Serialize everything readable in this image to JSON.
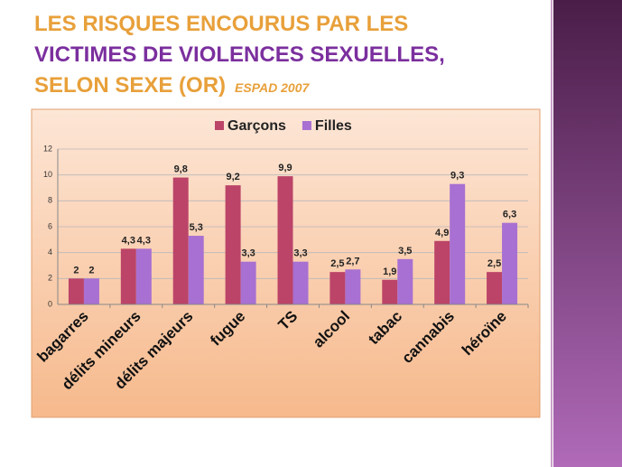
{
  "title_lines": [
    "LES RISQUES ENCOURUS PAR LES",
    "VICTIMES DE VIOLENCES SEXUELLES,",
    "SELON SEXE (OR)"
  ],
  "subtitle": "ESPAD 2007",
  "chart_data": {
    "type": "bar",
    "categories": [
      "bagarres",
      "délits mineurs",
      "délits majeurs",
      "fugue",
      "TS",
      "alcool",
      "tabac",
      "cannabis",
      "héroïne"
    ],
    "series": [
      {
        "name": "Garçons",
        "color": "#bb4468",
        "values": [
          2,
          4.3,
          9.8,
          9.2,
          9.9,
          2.5,
          1.9,
          4.9,
          2.5
        ],
        "value_labels": [
          "2",
          "4,3",
          "9,8",
          "9,2",
          "9,9",
          "2,5",
          "1,9",
          "4,9",
          "2,5"
        ]
      },
      {
        "name": "Filles",
        "color": "#a870d2",
        "values": [
          2,
          4.3,
          5.3,
          3.3,
          3.3,
          2.7,
          3.5,
          9.3,
          6.3
        ],
        "value_labels": [
          "2",
          "4,3",
          "5,3",
          "3,3",
          "3,3",
          "2,7",
          "3,5",
          "9,3",
          "6,3"
        ]
      }
    ],
    "ylim": [
      0,
      12
    ],
    "yticks": [
      0,
      2,
      4,
      6,
      8,
      10,
      12
    ],
    "grid": true,
    "legend": "top"
  }
}
